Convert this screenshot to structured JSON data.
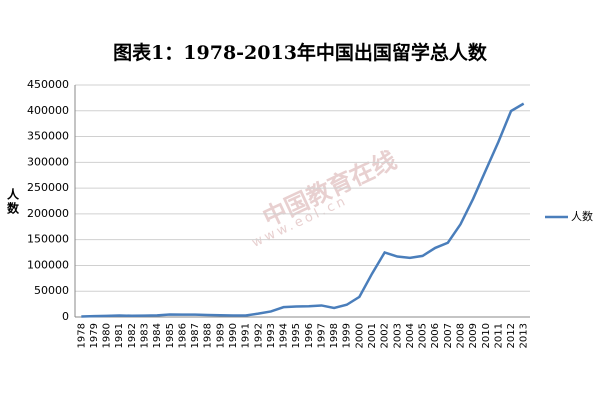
{
  "chart_data": {
    "type": "line",
    "title": "图表1：1978-2013年中国出国留学总人数",
    "y_label": "人数",
    "watermark": [
      "中国教育在线",
      "www.eol.cn"
    ],
    "categories": [
      "1978",
      "1979",
      "1980",
      "1981",
      "1982",
      "1983",
      "1984",
      "1985",
      "1986",
      "1987",
      "1988",
      "1989",
      "1990",
      "1991",
      "1992",
      "1993",
      "1994",
      "1995",
      "1996",
      "1997",
      "1998",
      "1999",
      "2000",
      "2001",
      "2002",
      "2003",
      "2004",
      "2005",
      "2006",
      "2007",
      "2008",
      "2009",
      "2010",
      "2011",
      "2012",
      "2013"
    ],
    "series": [
      {
        "name": "人数",
        "color": "#4a7ebb",
        "values": [
          860,
          1777,
          2124,
          2922,
          2326,
          2633,
          3073,
          4888,
          4676,
          4703,
          3786,
          3329,
          2950,
          2900,
          6540,
          10742,
          19071,
          20381,
          20905,
          22410,
          17622,
          23749,
          38989,
          83973,
          125179,
          117307,
          114682,
          118515,
          134000,
          144000,
          179800,
          229300,
          284700,
          339700,
          399600,
          413900
        ]
      }
    ],
    "ylim": [
      0,
      450000
    ],
    "yticks": [
      0,
      50000,
      100000,
      150000,
      200000,
      250000,
      300000,
      350000,
      400000,
      450000
    ],
    "grid": true,
    "legend": "right"
  }
}
